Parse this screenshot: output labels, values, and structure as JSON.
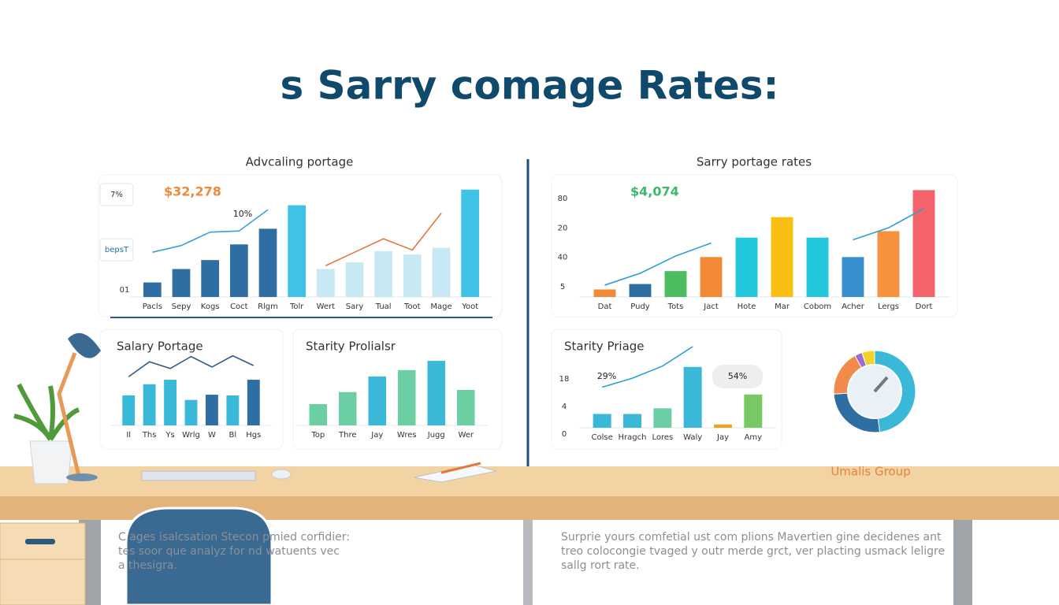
{
  "title": "s Sarry comage Rates:",
  "brand": "Umalis Group",
  "charts": [
    {
      "title": "Advcaling portage",
      "highlight": "$32,278",
      "highlight_color": "#f08a3a",
      "note": "10%",
      "badges": [
        "7%",
        "bepsT"
      ],
      "y_labels": [
        "01"
      ],
      "categories": [
        "Pacls",
        "Sepy",
        "Kogs",
        "Coct",
        "Rlgm",
        "Tolr",
        "Wert",
        "Sary",
        "Tual",
        "Toot",
        "Mage",
        "Yoot"
      ],
      "values": [
        13,
        25,
        33,
        47,
        61,
        82,
        25,
        31,
        41,
        38,
        44,
        96
      ],
      "colors": [
        "#2f6ea3",
        "#2f6ea3",
        "#2f6ea3",
        "#2f6ea3",
        "#2f6ea3",
        "#3ec3e6",
        "#c7e9f3",
        "#c7e9f3",
        "#c7e9f3",
        "#c7e9f3",
        "#c7e9f3",
        "#3ec3e6"
      ],
      "lines": [
        {
          "color": "#3aa0d8",
          "values": [
            40,
            46,
            58,
            59,
            78,
            null,
            null,
            null,
            null,
            null,
            null,
            null
          ]
        },
        {
          "color": "#e2793a",
          "values": [
            null,
            null,
            null,
            null,
            null,
            null,
            28,
            40,
            52,
            42,
            75,
            null
          ]
        }
      ],
      "ylim": [
        0,
        100
      ]
    },
    {
      "title": "Sarry portage rates",
      "highlight": "$4,074",
      "highlight_color": "#3cb96a",
      "y_labels": [
        "80",
        "20",
        "40",
        "5"
      ],
      "categories": [
        "Dat",
        "Pudy",
        "Tots",
        "Jact",
        "Hote",
        "Mar",
        "Cobom",
        "Acher",
        "Lergs",
        "Dort"
      ],
      "values": [
        7,
        12,
        24,
        37,
        55,
        74,
        55,
        37,
        61,
        99
      ],
      "colors": [
        "#f28a35",
        "#2f6ea3",
        "#4dbb5f",
        "#f28a35",
        "#22c7dc",
        "#f8be12",
        "#22c7dc",
        "#3a8fcf",
        "#f7913d",
        "#f4636a"
      ],
      "lines": [
        {
          "color": "#2a9fd6",
          "values": [
            11,
            22,
            38,
            50,
            null,
            null,
            null,
            53,
            64,
            82
          ]
        }
      ],
      "ylim": [
        0,
        100
      ]
    },
    {
      "title": "Salary Portage",
      "categories": [
        "Il",
        "Ths",
        "Ys",
        "Wrlg",
        "W",
        "Bl",
        "Hgs"
      ],
      "values": [
        40,
        55,
        61,
        34,
        41,
        40,
        61
      ],
      "colors": [
        "#3ab8d8",
        "#3ab8d8",
        "#3ab8d8",
        "#3ab8d8",
        "#2f6ea3",
        "#3ab8d8",
        "#2f6ea3"
      ],
      "lines": [
        {
          "color": "#2c5a82",
          "values": [
            65,
            85,
            76,
            92,
            78,
            93,
            80
          ]
        }
      ],
      "ylim": [
        0,
        100
      ]
    },
    {
      "title": "Starity Prolialsr",
      "categories": [
        "Top",
        "Thre",
        "Jay",
        "Wres",
        "Jugg",
        "Wer"
      ],
      "values": [
        30,
        47,
        69,
        78,
        91,
        50
      ],
      "colors": [
        "#6ccfa4",
        "#6ccfa4",
        "#3ab8d8",
        "#6ccfa4",
        "#3ab8d8",
        "#6ccfa4"
      ],
      "ylim": [
        0,
        100
      ]
    },
    {
      "title": "Starity Priage",
      "note": "29%",
      "callout": "54%",
      "y_labels": [
        "18",
        "4",
        "0"
      ],
      "categories": [
        "Colse",
        "Hragch",
        "Lores",
        "Waly",
        "Jay",
        "Amy"
      ],
      "values": [
        17,
        17,
        24,
        75,
        4,
        41
      ],
      "colors": [
        "#3ab8d8",
        "#3ab8d8",
        "#6ccfa4",
        "#3ab8d8",
        "#f2a21c",
        "#78c963"
      ],
      "lines": [
        {
          "color": "#2a9fd6",
          "values": [
            50,
            61,
            76,
            100,
            null,
            null
          ]
        }
      ],
      "ylim": [
        0,
        100
      ]
    }
  ],
  "pie": {
    "values": [
      48,
      26,
      18,
      3,
      5
    ],
    "colors": [
      "#3ab8d8",
      "#2f6ea3",
      "#f28a4a",
      "#9b6bd0",
      "#f5d22a"
    ]
  },
  "paragraphs": {
    "left": [
      "C               ages isalcsation Stecon pmied corfidier:",
      "               tes soor que analyz for nd watuents vec",
      "a               thesigra."
    ],
    "right": [
      "Surprie yours comfetial ust com plions Mavertien gine decidenes ant",
      "treo colocongie tvaged y outr merde grct, ver placting usmack leligre",
      "sallg rort rate."
    ]
  }
}
